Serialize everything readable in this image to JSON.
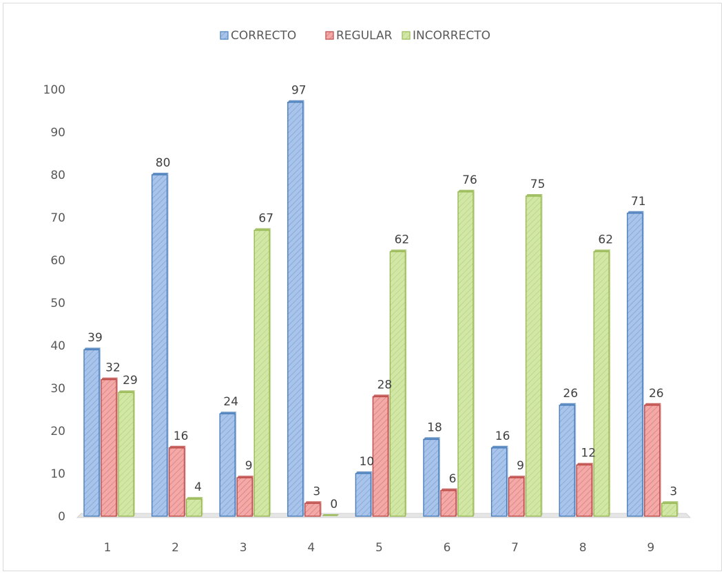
{
  "chart_data": {
    "type": "bar",
    "categories": [
      "1",
      "2",
      "3",
      "4",
      "5",
      "6",
      "7",
      "8",
      "9"
    ],
    "series": [
      {
        "name": "CORRECTO",
        "color": "#4a7ebb",
        "fill": "#a9c4eb",
        "values": [
          39,
          80,
          24,
          97,
          10,
          18,
          16,
          26,
          71
        ]
      },
      {
        "name": "REGULAR",
        "color": "#be4b48",
        "fill": "#f2a9a7",
        "values": [
          32,
          16,
          9,
          3,
          28,
          6,
          9,
          12,
          26
        ]
      },
      {
        "name": "INCORRECTO",
        "color": "#98b954",
        "fill": "#d2e7a6",
        "values": [
          29,
          4,
          67,
          0,
          62,
          76,
          75,
          62,
          3
        ]
      }
    ],
    "yticks": [
      "0",
      "10",
      "20",
      "30",
      "40",
      "50",
      "60",
      "70",
      "80",
      "90",
      "100"
    ],
    "ylim": [
      0,
      100
    ],
    "title": "",
    "xlabel": "",
    "ylabel": "",
    "legend_position": "top-center",
    "grid": false,
    "style": "3d-clustered-hatched"
  }
}
